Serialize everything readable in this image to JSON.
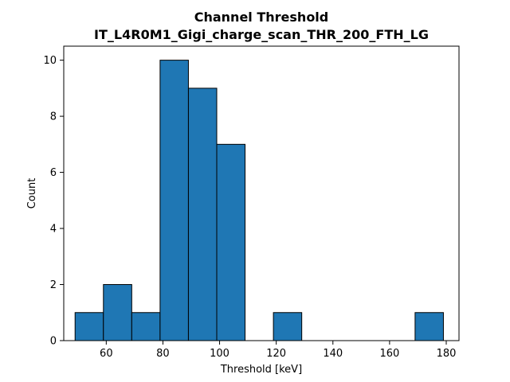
{
  "chart_data": {
    "type": "bar",
    "title_line1": "Channel Threshold",
    "title_line2": "IT_L4R0M1_Gigi_charge_scan_THR_200_FTH_LG",
    "xlabel": "Threshold [keV]",
    "ylabel": "Count",
    "xlim": [
      45,
      184.5
    ],
    "ylim": [
      0,
      10.5
    ],
    "x_ticks": [
      "60",
      "80",
      "100",
      "120",
      "140",
      "160",
      "180"
    ],
    "x_tick_values": [
      60,
      80,
      100,
      120,
      140,
      160,
      180
    ],
    "y_ticks": [
      "0",
      "2",
      "4",
      "6",
      "8",
      "10"
    ],
    "y_tick_values": [
      0,
      2,
      4,
      6,
      8,
      10
    ],
    "bins": [
      {
        "x0": 49,
        "x1": 59,
        "count": 1
      },
      {
        "x0": 59,
        "x1": 69,
        "count": 2
      },
      {
        "x0": 69,
        "x1": 79,
        "count": 1
      },
      {
        "x0": 79,
        "x1": 89,
        "count": 10
      },
      {
        "x0": 89,
        "x1": 99,
        "count": 9
      },
      {
        "x0": 99,
        "x1": 109,
        "count": 7
      },
      {
        "x0": 109,
        "x1": 119,
        "count": 0
      },
      {
        "x0": 119,
        "x1": 129,
        "count": 1
      },
      {
        "x0": 129,
        "x1": 139,
        "count": 0
      },
      {
        "x0": 139,
        "x1": 149,
        "count": 0
      },
      {
        "x0": 149,
        "x1": 159,
        "count": 0
      },
      {
        "x0": 159,
        "x1": 169,
        "count": 0
      },
      {
        "x0": 169,
        "x1": 179,
        "count": 1
      }
    ],
    "bar_color": "#1f77b4",
    "edge_color": "#000000",
    "grid": false,
    "legend": "none"
  }
}
